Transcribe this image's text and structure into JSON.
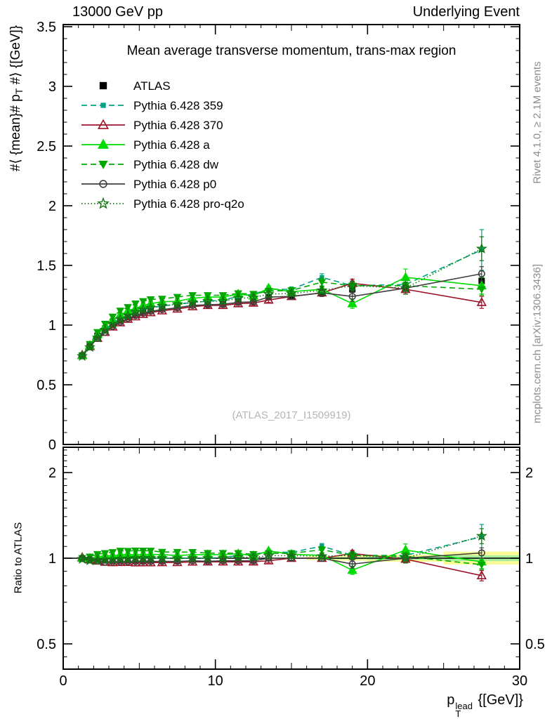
{
  "page": {
    "header_left": "13000 GeV pp",
    "header_right": "Underlying Event",
    "title": "Mean average transverse momentum, trans-max region",
    "watermark": "(ATLAS_2017_I1509919)",
    "side_note_top": "Rivet 4.1.0, ≥ 2.1M events",
    "side_note_bottom": "mcplots.cern.ch [arXiv:1306.3436]",
    "ratio_ylabel": "Ratio to ATLAS",
    "main_ylabel": {
      "pre": "#⟨ {mean}# p",
      "sub": "T",
      "post": " #⟩ {[GeV]}"
    },
    "xlabel": {
      "base": "p",
      "sup": "lead",
      "sub": "T",
      "rest": " {[GeV]}"
    }
  },
  "chart_data": {
    "type": "line",
    "title": "Mean average transverse momentum, trans-max region",
    "xlabel": "p_T^lead [GeV]",
    "ylabel": "<mean p_T> [GeV]",
    "ratio_label": "Ratio to ATLAS",
    "xlim": [
      0,
      30
    ],
    "main_ylim": [
      0,
      3.52
    ],
    "ratio_ylim": [
      0.41,
      2.45
    ],
    "ratio_scale": "log",
    "xticks": [
      0,
      10,
      20,
      30
    ],
    "main_yticks": [
      0,
      0.5,
      1,
      1.5,
      2,
      2.5,
      3,
      3.5
    ],
    "ratio_yticks": [
      0.5,
      1,
      2
    ],
    "grid": false,
    "legend_position": "top-left",
    "x": [
      1.25,
      1.75,
      2.25,
      2.75,
      3.25,
      3.75,
      4.25,
      4.75,
      5.25,
      5.75,
      6.5,
      7.5,
      8.5,
      9.5,
      10.5,
      11.5,
      12.5,
      13.5,
      15,
      17,
      19,
      22.5,
      27.5
    ],
    "series": [
      {
        "name": "ATLAS",
        "color": "#000000",
        "line": "none",
        "marker": "square-filled",
        "is_ref": true,
        "values": [
          0.745,
          0.83,
          0.91,
          0.97,
          1.02,
          1.055,
          1.085,
          1.11,
          1.13,
          1.145,
          1.16,
          1.175,
          1.19,
          1.2,
          1.2,
          1.215,
          1.22,
          1.235,
          1.24,
          1.27,
          1.3,
          1.31,
          1.37
        ],
        "err": [
          0.02,
          0.015,
          0.012,
          0.012,
          0.01,
          0.01,
          0.01,
          0.01,
          0.01,
          0.01,
          0.01,
          0.01,
          0.012,
          0.012,
          0.012,
          0.015,
          0.015,
          0.015,
          0.02,
          0.02,
          0.025,
          0.025,
          0.03
        ]
      },
      {
        "name": "Pythia 6.428 359",
        "color": "#00a184",
        "line": "dash",
        "marker": "square-small-filled",
        "values": [
          0.74,
          0.82,
          0.9,
          0.96,
          1.015,
          1.055,
          1.085,
          1.11,
          1.13,
          1.145,
          1.16,
          1.175,
          1.19,
          1.2,
          1.21,
          1.24,
          1.26,
          1.3,
          1.3,
          1.4,
          1.33,
          1.34,
          1.63
        ],
        "err": [
          0.008,
          0.008,
          0.008,
          0.008,
          0.008,
          0.008,
          0.008,
          0.008,
          0.008,
          0.01,
          0.01,
          0.01,
          0.012,
          0.012,
          0.015,
          0.015,
          0.018,
          0.02,
          0.02,
          0.03,
          0.035,
          0.05,
          0.17
        ]
      },
      {
        "name": "Pythia 6.428 370",
        "color": "#9e1228",
        "line": "solid",
        "marker": "triangle-open",
        "values": [
          0.75,
          0.82,
          0.89,
          0.94,
          0.985,
          1.02,
          1.05,
          1.07,
          1.09,
          1.105,
          1.12,
          1.135,
          1.155,
          1.165,
          1.165,
          1.18,
          1.185,
          1.21,
          1.24,
          1.27,
          1.35,
          1.3,
          1.19
        ],
        "err": [
          0.008,
          0.008,
          0.008,
          0.008,
          0.008,
          0.008,
          0.008,
          0.008,
          0.008,
          0.01,
          0.01,
          0.01,
          0.012,
          0.012,
          0.015,
          0.015,
          0.018,
          0.02,
          0.02,
          0.03,
          0.035,
          0.04,
          0.05
        ]
      },
      {
        "name": "Pythia 6.428 a",
        "color": "#00dc00",
        "line": "solid",
        "marker": "triangle-filled",
        "values": [
          0.745,
          0.83,
          0.92,
          0.99,
          1.04,
          1.085,
          1.12,
          1.14,
          1.165,
          1.18,
          1.195,
          1.2,
          1.225,
          1.235,
          1.235,
          1.26,
          1.245,
          1.31,
          1.28,
          1.3,
          1.18,
          1.4,
          1.33
        ],
        "err": [
          0.008,
          0.008,
          0.008,
          0.008,
          0.008,
          0.008,
          0.008,
          0.008,
          0.008,
          0.01,
          0.01,
          0.01,
          0.012,
          0.012,
          0.015,
          0.015,
          0.018,
          0.02,
          0.025,
          0.03,
          0.04,
          0.07,
          0.07
        ]
      },
      {
        "name": "Pythia 6.428 dw",
        "color": "#00a800",
        "line": "dash",
        "marker": "triangle-down-filled",
        "values": [
          0.745,
          0.84,
          0.94,
          1.01,
          1.07,
          1.12,
          1.15,
          1.18,
          1.2,
          1.215,
          1.22,
          1.235,
          1.25,
          1.25,
          1.25,
          1.265,
          1.26,
          1.285,
          1.29,
          1.36,
          1.33,
          1.33,
          1.3
        ],
        "err": [
          0.015,
          0.015,
          0.015,
          0.015,
          0.015,
          0.015,
          0.015,
          0.015,
          0.015,
          0.015,
          0.015,
          0.015,
          0.018,
          0.018,
          0.018,
          0.02,
          0.02,
          0.025,
          0.025,
          0.035,
          0.04,
          0.045,
          0.05
        ]
      },
      {
        "name": "Pythia 6.428 p0",
        "color": "#3f3f3f",
        "line": "solid",
        "marker": "circle-open",
        "values": [
          0.745,
          0.82,
          0.89,
          0.94,
          0.99,
          1.025,
          1.055,
          1.08,
          1.1,
          1.115,
          1.13,
          1.145,
          1.165,
          1.17,
          1.175,
          1.19,
          1.195,
          1.235,
          1.24,
          1.27,
          1.24,
          1.31,
          1.43
        ],
        "err": [
          0.008,
          0.008,
          0.008,
          0.008,
          0.008,
          0.008,
          0.008,
          0.008,
          0.008,
          0.01,
          0.01,
          0.01,
          0.012,
          0.012,
          0.015,
          0.015,
          0.018,
          0.02,
          0.02,
          0.03,
          0.04,
          0.05,
          0.06
        ]
      },
      {
        "name": "Pythia 6.428 pro-q2o",
        "color": "#117711",
        "line": "dot",
        "marker": "star-open",
        "values": [
          0.74,
          0.815,
          0.895,
          0.96,
          1.01,
          1.05,
          1.08,
          1.11,
          1.13,
          1.145,
          1.16,
          1.175,
          1.19,
          1.2,
          1.2,
          1.225,
          1.23,
          1.26,
          1.265,
          1.29,
          1.33,
          1.31,
          1.64
        ],
        "err": [
          0.008,
          0.008,
          0.008,
          0.008,
          0.008,
          0.008,
          0.008,
          0.008,
          0.008,
          0.01,
          0.01,
          0.01,
          0.012,
          0.012,
          0.015,
          0.015,
          0.018,
          0.02,
          0.02,
          0.03,
          0.04,
          0.05,
          0.1
        ]
      }
    ],
    "ratio_bands": {
      "yellow_color": "#fafa96",
      "green_color": "#a6efa0",
      "yellow": [
        [
          16,
          18,
          0.985,
          1.015
        ],
        [
          18,
          20,
          0.98,
          1.02
        ],
        [
          20,
          25,
          0.972,
          1.028
        ],
        [
          25,
          30,
          0.95,
          1.055
        ]
      ],
      "green": [
        [
          16,
          18,
          0.993,
          1.007
        ],
        [
          18,
          20,
          0.991,
          1.009
        ],
        [
          20,
          25,
          0.987,
          1.013
        ],
        [
          25,
          30,
          0.977,
          1.023
        ]
      ]
    }
  }
}
